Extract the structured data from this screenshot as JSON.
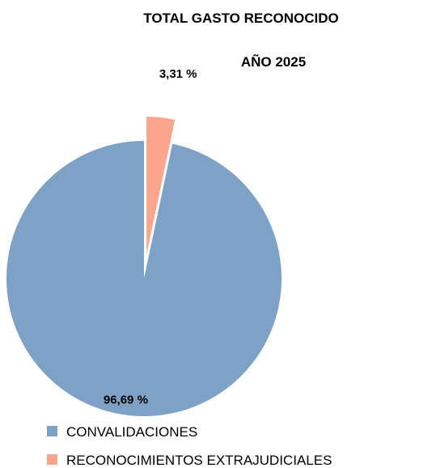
{
  "chart_data": {
    "type": "pie",
    "title": "TOTAL GASTO RECONOCIDO",
    "subtitle": "AÑO 2025",
    "categories": [
      "CONVALIDACIONES",
      "RECONOCIMIENTOS EXTRAJUDICIALES"
    ],
    "values": [
      96.69,
      3.31
    ],
    "data_labels": [
      "96,69 %",
      "3,31 %"
    ],
    "colors": [
      "#7EA2C6",
      "#FBA58D"
    ],
    "exploded": [
      false,
      true
    ],
    "legend_position": "bottom-left"
  }
}
